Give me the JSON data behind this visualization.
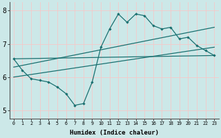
{
  "xlabel": "Humidex (Indice chaleur)",
  "bg_color": "#cce8e8",
  "grid_color": "#f5c8c8",
  "line_color": "#1a7070",
  "xlim": [
    -0.5,
    23.5
  ],
  "ylim": [
    4.75,
    8.25
  ],
  "yticks": [
    5,
    6,
    7,
    8
  ],
  "xticks": [
    0,
    1,
    2,
    3,
    4,
    5,
    6,
    7,
    8,
    9,
    10,
    11,
    12,
    13,
    14,
    15,
    16,
    17,
    18,
    19,
    20,
    21,
    22,
    23
  ],
  "line1_x": [
    0,
    1,
    2,
    3,
    4,
    5,
    6,
    7,
    8,
    9,
    10,
    11,
    12,
    13,
    14,
    15,
    16,
    17,
    18,
    19,
    20,
    21,
    22,
    23
  ],
  "line1_y": [
    6.55,
    6.2,
    5.95,
    5.9,
    5.85,
    5.7,
    5.5,
    5.15,
    5.2,
    5.85,
    6.9,
    7.45,
    7.9,
    7.65,
    7.9,
    7.85,
    7.55,
    7.45,
    7.5,
    7.15,
    7.2,
    6.95,
    6.8,
    6.65
  ],
  "line2_x": [
    0,
    23
  ],
  "line2_y": [
    6.55,
    6.65
  ],
  "line3_x": [
    0,
    23
  ],
  "line3_y": [
    6.3,
    7.5
  ],
  "line4_x": [
    0,
    23
  ],
  "line4_y": [
    6.0,
    6.9
  ]
}
